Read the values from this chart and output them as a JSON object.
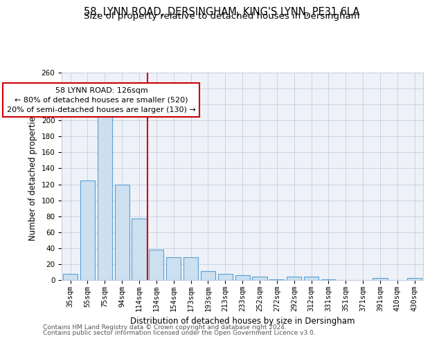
{
  "title_line1": "58, LYNN ROAD, DERSINGHAM, KING'S LYNN, PE31 6LA",
  "title_line2": "Size of property relative to detached houses in Dersingham",
  "xlabel": "Distribution of detached houses by size in Dersingham",
  "ylabel": "Number of detached properties",
  "categories": [
    "35sqm",
    "55sqm",
    "75sqm",
    "94sqm",
    "114sqm",
    "134sqm",
    "154sqm",
    "173sqm",
    "193sqm",
    "213sqm",
    "233sqm",
    "252sqm",
    "272sqm",
    "292sqm",
    "312sqm",
    "331sqm",
    "351sqm",
    "371sqm",
    "391sqm",
    "410sqm",
    "430sqm"
  ],
  "values": [
    8,
    125,
    218,
    120,
    77,
    38,
    29,
    29,
    11,
    8,
    6,
    4,
    1,
    4,
    4,
    1,
    0,
    0,
    3,
    0,
    3
  ],
  "bar_color": "#cce0f0",
  "bar_edge_color": "#5a9fd4",
  "red_line_x": 4.5,
  "annotation_text": "58 LYNN ROAD: 126sqm\n← 80% of detached houses are smaller (520)\n20% of semi-detached houses are larger (130) →",
  "annotation_box_color": "#ffffff",
  "annotation_box_edge": "#cc0000",
  "red_line_color": "#cc0000",
  "ylim": [
    0,
    260
  ],
  "yticks": [
    0,
    20,
    40,
    60,
    80,
    100,
    120,
    140,
    160,
    180,
    200,
    220,
    240,
    260
  ],
  "background_color": "#eef2f8",
  "footer_line1": "Contains HM Land Registry data © Crown copyright and database right 2024.",
  "footer_line2": "Contains public sector information licensed under the Open Government Licence v3.0.",
  "title_fontsize": 10.5,
  "subtitle_fontsize": 9.5,
  "tick_fontsize": 7.5,
  "ylabel_fontsize": 8.5,
  "xlabel_fontsize": 8.5,
  "footer_fontsize": 6.5
}
